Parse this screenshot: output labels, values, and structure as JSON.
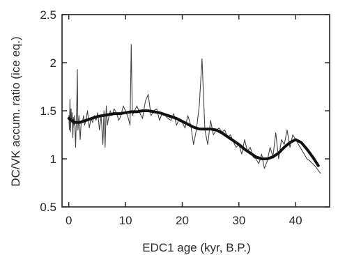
{
  "chart_data": {
    "type": "line",
    "title": "",
    "xlabel": "EDC1 age (kyr, B.P.)",
    "ylabel": "DC/VK accum. ratio (ice eq.)",
    "xlim": [
      -1.2,
      46
    ],
    "ylim": [
      0.5,
      2.5
    ],
    "xticks": [
      0,
      10,
      20,
      30,
      40
    ],
    "yticks": [
      0.5,
      1,
      1.5,
      2,
      2.5
    ],
    "ytick_labels": [
      "0.5",
      "1",
      "1.5",
      "2",
      "2.5"
    ],
    "grid": false,
    "legend": "none",
    "series": [
      {
        "style": "thin",
        "color": "#444444",
        "x": [
          0.0,
          0.1,
          0.2,
          0.3,
          0.4,
          0.5,
          0.6,
          0.7,
          0.8,
          0.9,
          1.0,
          1.2,
          1.4,
          1.5,
          1.6,
          1.8,
          2.0,
          2.2,
          2.4,
          2.6,
          2.8,
          3.0,
          3.3,
          3.6,
          3.9,
          4.2,
          4.5,
          4.8,
          5.1,
          5.4,
          5.7,
          6.0,
          6.2,
          6.4,
          6.6,
          6.8,
          7.0,
          7.3,
          7.6,
          8.0,
          8.4,
          8.8,
          9.2,
          9.6,
          10.0,
          10.5,
          10.8,
          11.0,
          11.2,
          11.6,
          12.0,
          12.5,
          13.0,
          13.5,
          14.0,
          14.5,
          15.0,
          15.5,
          16.0,
          16.5,
          17.0,
          17.5,
          18.0,
          18.5,
          19.0,
          19.5,
          20.0,
          20.5,
          21.0,
          21.5,
          22.0,
          22.5,
          23.0,
          23.5,
          24.0,
          24.5,
          25.0,
          25.5,
          26.0,
          26.5,
          27.0,
          27.5,
          28.0,
          28.5,
          29.0,
          29.5,
          30.0,
          30.5,
          31.0,
          31.5,
          32.0,
          32.5,
          33.0,
          33.5,
          34.0,
          34.5,
          35.0,
          35.5,
          36.0,
          36.5,
          37.0,
          37.5,
          38.0,
          38.5,
          39.0,
          39.5,
          40.0,
          40.5,
          41.0,
          41.5,
          42.0,
          42.5,
          43.0,
          43.5,
          44.0,
          44.4
        ],
        "y": [
          1.45,
          1.3,
          1.62,
          1.28,
          1.52,
          1.38,
          1.48,
          1.22,
          1.43,
          1.35,
          1.45,
          1.12,
          1.6,
          1.93,
          1.3,
          1.45,
          1.2,
          1.4,
          1.38,
          1.45,
          1.35,
          1.4,
          1.5,
          1.32,
          1.42,
          1.38,
          1.45,
          1.4,
          1.48,
          1.3,
          1.45,
          1.15,
          1.5,
          1.12,
          1.55,
          1.35,
          1.42,
          1.5,
          1.45,
          1.52,
          1.48,
          1.4,
          1.45,
          1.55,
          1.5,
          1.42,
          1.35,
          2.19,
          1.45,
          1.5,
          1.55,
          1.48,
          1.42,
          1.6,
          1.67,
          1.45,
          1.5,
          1.52,
          1.4,
          1.48,
          1.45,
          1.42,
          1.4,
          1.47,
          1.35,
          1.42,
          1.38,
          1.32,
          1.45,
          1.35,
          1.15,
          1.3,
          1.55,
          2.04,
          1.3,
          1.15,
          1.4,
          1.25,
          1.3,
          1.32,
          1.28,
          1.3,
          1.22,
          1.25,
          1.18,
          1.12,
          1.15,
          1.05,
          1.2,
          1.08,
          1.12,
          1.02,
          1.0,
          0.95,
          1.05,
          0.9,
          0.98,
          1.12,
          1.02,
          1.27,
          1.0,
          1.2,
          1.15,
          1.3,
          1.12,
          1.25,
          1.2,
          1.15,
          1.1,
          1.05,
          1.0,
          0.98,
          0.95,
          0.92,
          0.88,
          0.85
        ]
      },
      {
        "style": "thick-smoothed",
        "color": "#111111",
        "x": [
          0,
          1,
          2,
          3,
          4,
          5,
          6,
          7,
          8,
          9,
          10,
          11,
          12,
          13,
          14,
          15,
          16,
          17,
          18,
          19,
          20,
          21,
          22,
          23,
          24,
          25,
          26,
          27,
          28,
          29,
          30,
          31,
          32,
          33,
          34,
          35,
          36,
          37,
          38,
          39,
          40,
          41,
          42,
          43,
          44
        ],
        "y": [
          1.42,
          1.38,
          1.38,
          1.4,
          1.42,
          1.44,
          1.45,
          1.46,
          1.47,
          1.47,
          1.48,
          1.49,
          1.49,
          1.5,
          1.5,
          1.49,
          1.48,
          1.46,
          1.44,
          1.42,
          1.39,
          1.36,
          1.33,
          1.31,
          1.31,
          1.31,
          1.3,
          1.27,
          1.23,
          1.19,
          1.15,
          1.1,
          1.06,
          1.02,
          1.0,
          1.0,
          1.02,
          1.06,
          1.12,
          1.17,
          1.2,
          1.17,
          1.1,
          1.02,
          0.93
        ]
      }
    ]
  }
}
